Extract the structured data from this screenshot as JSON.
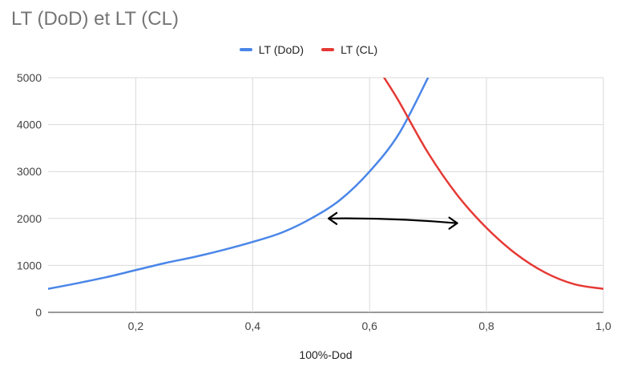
{
  "chart_data": {
    "type": "line",
    "title": "LT (DoD) et LT (CL)",
    "xlabel": "100%-Dod",
    "ylabel": "",
    "xlim": [
      0.05,
      1.0
    ],
    "ylim": [
      0,
      5000
    ],
    "x_ticks": [
      "0,2",
      "0,4",
      "0,6",
      "0,8",
      "1,0"
    ],
    "y_ticks": [
      "0",
      "1000",
      "2000",
      "3000",
      "4000",
      "5000"
    ],
    "grid": true,
    "legend_position": "top-center",
    "series": [
      {
        "name": "LT (DoD)",
        "color": "#4a86e8",
        "x": [
          0.05,
          0.1,
          0.15,
          0.2,
          0.25,
          0.3,
          0.35,
          0.4,
          0.45,
          0.5,
          0.55,
          0.6,
          0.65,
          0.7
        ],
        "y": [
          500,
          620,
          750,
          900,
          1050,
          1180,
          1330,
          1500,
          1700,
          2000,
          2400,
          3000,
          3800,
          5000
        ]
      },
      {
        "name": "LT (CL)",
        "color": "#e53935",
        "x": [
          0.625,
          0.65,
          0.7,
          0.75,
          0.8,
          0.85,
          0.9,
          0.95,
          1.0
        ],
        "y": [
          5000,
          4500,
          3400,
          2500,
          1800,
          1250,
          850,
          600,
          500
        ]
      }
    ],
    "annotations": [
      {
        "type": "double-arrow",
        "from": [
          0.53,
          2000
        ],
        "to": [
          0.75,
          1900
        ],
        "color": "#000000"
      }
    ]
  }
}
